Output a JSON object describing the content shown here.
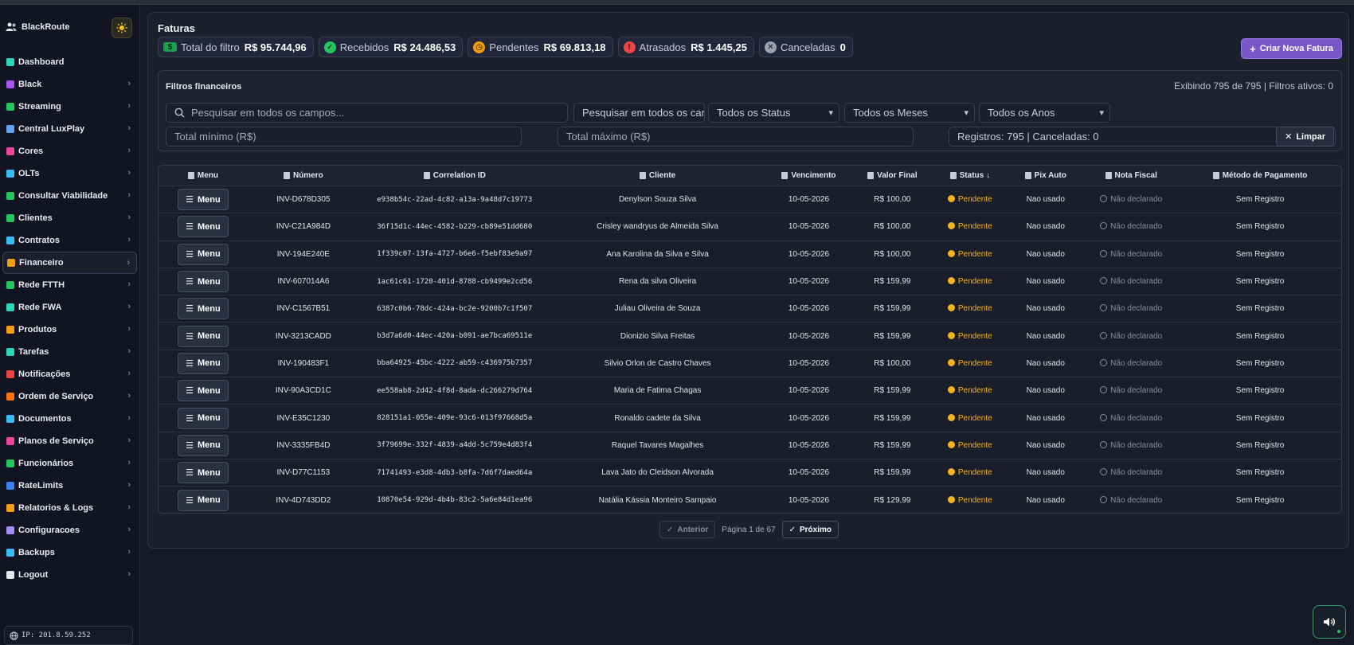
{
  "brand": {
    "name": "BlackRoute",
    "icon": "users-icon",
    "theme_icon": "sun-icon"
  },
  "sidebar": {
    "items": [
      {
        "label": "Dashboard",
        "color": "#2dd4bf",
        "chevron": false
      },
      {
        "label": "Black",
        "color": "#a855f7",
        "chevron": true
      },
      {
        "label": "Streaming",
        "color": "#22c55e",
        "chevron": true
      },
      {
        "label": "Central LuxPlay",
        "color": "#60a5fa",
        "chevron": true
      },
      {
        "label": "Cores",
        "color": "#ec4899",
        "chevron": true
      },
      {
        "label": "OLTs",
        "color": "#38bdf8",
        "chevron": true
      },
      {
        "label": "Consultar Viabilidade",
        "color": "#22c55e",
        "chevron": true
      },
      {
        "label": "Clientes",
        "color": "#22c55e",
        "chevron": true
      },
      {
        "label": "Contratos",
        "color": "#38bdf8",
        "chevron": true
      },
      {
        "label": "Financeiro",
        "color": "#f59e0b",
        "chevron": true,
        "active": true
      },
      {
        "label": "Rede FTTH",
        "color": "#22c55e",
        "chevron": true
      },
      {
        "label": "Rede FWA",
        "color": "#2dd4bf",
        "chevron": true
      },
      {
        "label": "Produtos",
        "color": "#f59e0b",
        "chevron": true
      },
      {
        "label": "Tarefas",
        "color": "#2dd4bf",
        "chevron": true
      },
      {
        "label": "Notificações",
        "color": "#ef4444",
        "chevron": true
      },
      {
        "label": "Ordem de Serviço",
        "color": "#f97316",
        "chevron": true
      },
      {
        "label": "Documentos",
        "color": "#38bdf8",
        "chevron": true
      },
      {
        "label": "Planos de Serviço",
        "color": "#ec4899",
        "chevron": true
      },
      {
        "label": "Funcionários",
        "color": "#22c55e",
        "chevron": true
      },
      {
        "label": "RateLimits",
        "color": "#3b82f6",
        "chevron": true
      },
      {
        "label": "Relatorios & Logs",
        "color": "#f59e0b",
        "chevron": true
      },
      {
        "label": "Configuracoes",
        "color": "#a78bfa",
        "chevron": true
      },
      {
        "label": "Backups",
        "color": "#38bdf8",
        "chevron": true
      },
      {
        "label": "Logout",
        "color": "#e5e7eb",
        "chevron": true
      }
    ],
    "ip": "IP: 201.8.59.252"
  },
  "header": {
    "title": "Faturas",
    "create_label": "Criar Nova Fatura"
  },
  "stats": [
    {
      "label": "Total do filtro",
      "value": "R$ 95.744,96",
      "color": "#16a34a",
      "icon": "money-icon"
    },
    {
      "label": "Recebidos",
      "value": "R$ 24.486,53",
      "color": "#22c55e",
      "icon": "check-circle-icon"
    },
    {
      "label": "Pendentes",
      "value": "R$ 69.813,18",
      "color": "#f59e0b",
      "icon": "clock-icon"
    },
    {
      "label": "Atrasados",
      "value": "R$ 1.445,25",
      "color": "#ef4444",
      "icon": "alert-icon"
    },
    {
      "label": "Canceladas",
      "value": "0",
      "color": "#9ca3af",
      "icon": "x-circle-icon"
    }
  ],
  "filters": {
    "title": "Filtros financeiros",
    "info": "Exibindo 795 de 795 | Filtros ativos: 0",
    "search_placeholder": "Pesquisar em todos os campos...",
    "field_select": "Pesquisar em todos os campos",
    "status_select": "Todos os Status",
    "month_select": "Todos os Meses",
    "year_select": "Todos os Anos",
    "min_placeholder": "Total mínimo (R$)",
    "max_placeholder": "Total máximo (R$)",
    "records": "Registros: 795 | Canceladas: 0",
    "clear_label": "Limpar"
  },
  "table": {
    "columns": [
      "Menu",
      "Número",
      "Correlation ID",
      "Cliente",
      "Vencimento",
      "Valor Final",
      "Status ↓",
      "Pix Auto",
      "Nota Fiscal",
      "Método de Pagamento"
    ],
    "menu_label": "Menu",
    "rows": [
      {
        "numero": "INV-D678D305",
        "cid": "e938b54c-22ad-4c82-a13a-9a48d7c19773",
        "cliente": "Denylson Souza Silva",
        "venc": "10-05-2026",
        "valor": "R$ 100,00",
        "status": "Pendente",
        "pix": "Nao usado",
        "nf": "Não declarado",
        "metodo": "Sem Registro"
      },
      {
        "numero": "INV-C21A984D",
        "cid": "36f15d1c-44ec-4582-b229-cb89e51dd680",
        "cliente": "Crisley wandryus de Almeida Silva",
        "venc": "10-05-2026",
        "valor": "R$ 100,00",
        "status": "Pendente",
        "pix": "Nao usado",
        "nf": "Não declarado",
        "metodo": "Sem Registro"
      },
      {
        "numero": "INV-194E240E",
        "cid": "1f339c07-13fa-4727-b6e6-f5ebf83e9a97",
        "cliente": "Ana Karolina da Silva e Silva",
        "venc": "10-05-2026",
        "valor": "R$ 100,00",
        "status": "Pendente",
        "pix": "Nao usado",
        "nf": "Não declarado",
        "metodo": "Sem Registro"
      },
      {
        "numero": "INV-607014A6",
        "cid": "1ac61c61-1720-401d-8788-cb9499e2cd56",
        "cliente": "Rena da silva Oliveira",
        "venc": "10-05-2026",
        "valor": "R$ 159,99",
        "status": "Pendente",
        "pix": "Nao usado",
        "nf": "Não declarado",
        "metodo": "Sem Registro"
      },
      {
        "numero": "INV-C1567B51",
        "cid": "6387c0b6-78dc-424a-bc2e-9200b7c1f507",
        "cliente": "Juliau Oliveira de Souza",
        "venc": "10-05-2026",
        "valor": "R$ 159,99",
        "status": "Pendente",
        "pix": "Nao usado",
        "nf": "Não declarado",
        "metodo": "Sem Registro"
      },
      {
        "numero": "INV-3213CADD",
        "cid": "b3d7a6d0-44ec-420a-b091-ae7bca69511e",
        "cliente": "Dionizio Silva Freitas",
        "venc": "10-05-2026",
        "valor": "R$ 159,99",
        "status": "Pendente",
        "pix": "Nao usado",
        "nf": "Não declarado",
        "metodo": "Sem Registro"
      },
      {
        "numero": "INV-190483F1",
        "cid": "bba64925-45bc-4222-ab59-c436975b7357",
        "cliente": "Silvio Orlon de Castro Chaves",
        "venc": "10-05-2026",
        "valor": "R$ 100,00",
        "status": "Pendente",
        "pix": "Nao usado",
        "nf": "Não declarado",
        "metodo": "Sem Registro"
      },
      {
        "numero": "INV-90A3CD1C",
        "cid": "ee558ab8-2d42-4f8d-8ada-dc266279d764",
        "cliente": "Maria de Fatima Chagas",
        "venc": "10-05-2026",
        "valor": "R$ 159,99",
        "status": "Pendente",
        "pix": "Nao usado",
        "nf": "Não declarado",
        "metodo": "Sem Registro"
      },
      {
        "numero": "INV-E35C1230",
        "cid": "828151a1-055e-409e-93c6-013f97668d5a",
        "cliente": "Ronaldo cadete da Silva",
        "venc": "10-05-2026",
        "valor": "R$ 159,99",
        "status": "Pendente",
        "pix": "Nao usado",
        "nf": "Não declarado",
        "metodo": "Sem Registro"
      },
      {
        "numero": "INV-3335FB4D",
        "cid": "3f79699e-332f-4839-a4dd-5c759e4d83f4",
        "cliente": "Raquel Tavares Magalhes",
        "venc": "10-05-2026",
        "valor": "R$ 159,99",
        "status": "Pendente",
        "pix": "Nao usado",
        "nf": "Não declarado",
        "metodo": "Sem Registro"
      },
      {
        "numero": "INV-D77C1153",
        "cid": "71741493-e3d8-4db3-b8fa-7d6f7daed64a",
        "cliente": "Lava Jato do Cleidson Alvorada",
        "venc": "10-05-2026",
        "valor": "R$ 159,99",
        "status": "Pendente",
        "pix": "Nao usado",
        "nf": "Não declarado",
        "metodo": "Sem Registro"
      },
      {
        "numero": "INV-4D743DD2",
        "cid": "10870e54-929d-4b4b-83c2-5a6e84d1ea96",
        "cliente": "Natália Kássia Monteiro Sampaio",
        "venc": "10-05-2026",
        "valor": "R$ 129,99",
        "status": "Pendente",
        "pix": "Nao usado",
        "nf": "Não declarado",
        "metodo": "Sem Registro"
      }
    ]
  },
  "pager": {
    "prev_label": "Anterior",
    "info": "Página 1 de 67",
    "next_label": "Próximo"
  }
}
